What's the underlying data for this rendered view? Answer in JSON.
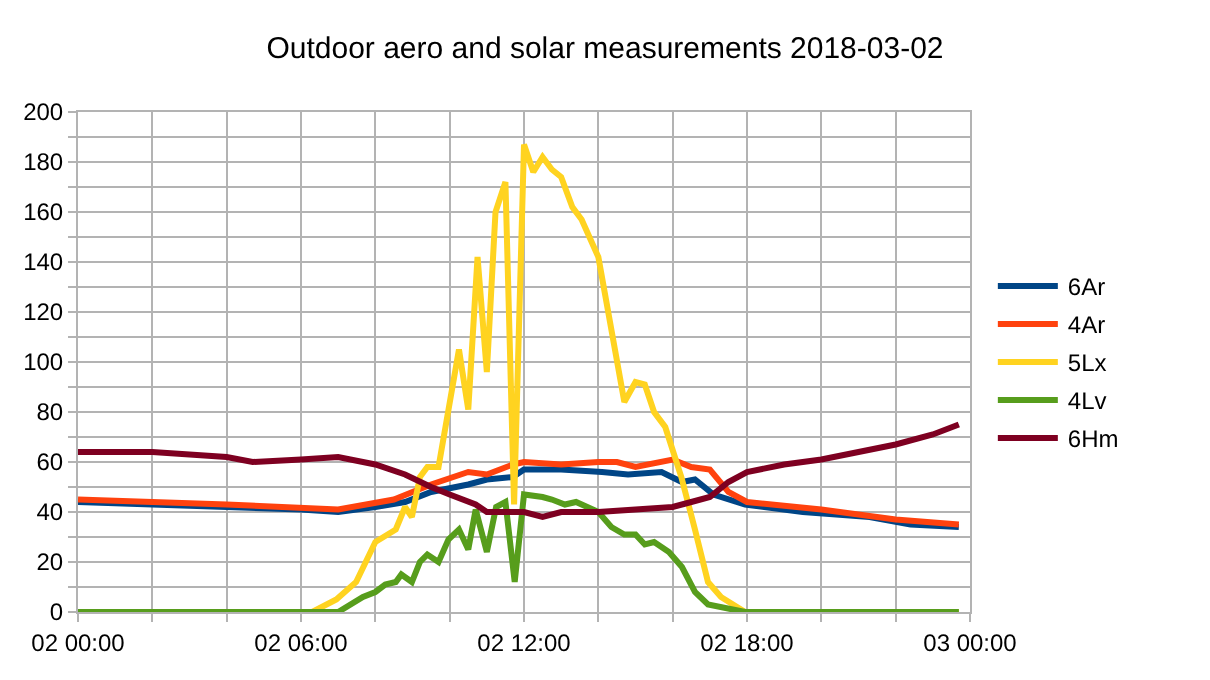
{
  "chart_data": {
    "type": "line",
    "title": "Outdoor aero and solar measurements 2018-03-02",
    "xlim": [
      "2018-03-02T00:00",
      "2018-03-03T00:00"
    ],
    "xticks": [
      {
        "value": "2018-03-02T00:00",
        "label": "02 00:00"
      },
      {
        "value": "2018-03-02T02:00",
        "label": null
      },
      {
        "value": "2018-03-02T04:00",
        "label": null
      },
      {
        "value": "2018-03-02T06:00",
        "label": "02 06:00"
      },
      {
        "value": "2018-03-02T08:00",
        "label": null
      },
      {
        "value": "2018-03-02T10:00",
        "label": null
      },
      {
        "value": "2018-03-02T12:00",
        "label": "02 12:00"
      },
      {
        "value": "2018-03-02T14:00",
        "label": null
      },
      {
        "value": "2018-03-02T16:00",
        "label": null
      },
      {
        "value": "2018-03-02T18:00",
        "label": "02 18:00"
      },
      {
        "value": "2018-03-02T20:00",
        "label": null
      },
      {
        "value": "2018-03-02T22:00",
        "label": null
      },
      {
        "value": "2018-03-03T00:00",
        "label": "03 00:00"
      }
    ],
    "ylim": [
      0,
      200
    ],
    "yticks": [
      0,
      {
        "value": 10,
        "label": null
      },
      20,
      {
        "value": 30,
        "label": null
      },
      40,
      {
        "value": 50,
        "label": null
      },
      60,
      {
        "value": 70,
        "label": null
      },
      80,
      {
        "value": 90,
        "label": null
      },
      100,
      {
        "value": 110,
        "label": null
      },
      120,
      {
        "value": 130,
        "label": null
      },
      140,
      {
        "value": 150,
        "label": null
      },
      160,
      {
        "value": 170,
        "label": null
      },
      180,
      {
        "value": 190,
        "label": null
      },
      200
    ],
    "grid": true,
    "legend": "right",
    "marker": "none",
    "line_style": "solid",
    "series": [
      {
        "name": "6Ar",
        "color": "#004586",
        "x": [
          "2018-03-02T00:00",
          "2018-03-02T02:00",
          "2018-03-02T04:00",
          "2018-03-02T06:00",
          "2018-03-02T07:00",
          "2018-03-02T08:00",
          "2018-03-02T08:48",
          "2018-03-02T09:30",
          "2018-03-02T10:30",
          "2018-03-02T11:00",
          "2018-03-02T11:42",
          "2018-03-02T12:00",
          "2018-03-02T13:00",
          "2018-03-02T14:06",
          "2018-03-02T14:48",
          "2018-03-02T15:42",
          "2018-03-02T16:15",
          "2018-03-02T16:36",
          "2018-03-02T17:06",
          "2018-03-02T17:57",
          "2018-03-02T19:30",
          "2018-03-02T21:18",
          "2018-03-02T22:24",
          "2018-03-02T23:42"
        ],
        "values": [
          44,
          43,
          42,
          41,
          40,
          42,
          44,
          48,
          51,
          53,
          54,
          57,
          57,
          56,
          55,
          56,
          52,
          53,
          47,
          43,
          40,
          38,
          35,
          34
        ]
      },
      {
        "name": "4Ar",
        "color": "#ff420e",
        "x": [
          "2018-03-02T00:00",
          "2018-03-02T04:00",
          "2018-03-02T07:00",
          "2018-03-02T08:30",
          "2018-03-02T09:00",
          "2018-03-02T09:30",
          "2018-03-02T10:30",
          "2018-03-02T11:00",
          "2018-03-02T11:42",
          "2018-03-02T12:00",
          "2018-03-02T13:00",
          "2018-03-02T14:00",
          "2018-03-02T14:30",
          "2018-03-02T15:00",
          "2018-03-02T16:00",
          "2018-03-02T16:30",
          "2018-03-02T17:00",
          "2018-03-02T17:30",
          "2018-03-02T18:00",
          "2018-03-02T20:00",
          "2018-03-02T22:00",
          "2018-03-02T23:42"
        ],
        "values": [
          45,
          43,
          41,
          45,
          48,
          51,
          56,
          55,
          59,
          60,
          59,
          60,
          60,
          58,
          61,
          58,
          57,
          48,
          44,
          41,
          37,
          35
        ]
      },
      {
        "name": "5Lx",
        "color": "#ffd320",
        "x": [
          "2018-03-02T00:00",
          "2018-03-02T06:18",
          "2018-03-02T06:57",
          "2018-03-02T07:29",
          "2018-03-02T08:00",
          "2018-03-02T08:33",
          "2018-03-02T08:48",
          "2018-03-02T08:59",
          "2018-03-02T09:12",
          "2018-03-02T09:24",
          "2018-03-02T09:42",
          "2018-03-02T10:15",
          "2018-03-02T10:30",
          "2018-03-02T10:45",
          "2018-03-02T11:00",
          "2018-03-02T11:14",
          "2018-03-02T11:30",
          "2018-03-02T11:44",
          "2018-03-02T12:00",
          "2018-03-02T12:15",
          "2018-03-02T12:30",
          "2018-03-02T12:45",
          "2018-03-02T13:00",
          "2018-03-02T13:18",
          "2018-03-02T13:33",
          "2018-03-02T14:00",
          "2018-03-02T14:42",
          "2018-03-02T15:00",
          "2018-03-02T15:15",
          "2018-03-02T15:30",
          "2018-03-02T15:48",
          "2018-03-02T16:14",
          "2018-03-02T16:36",
          "2018-03-02T16:57",
          "2018-03-02T17:18",
          "2018-03-02T17:57",
          "2018-03-02T23:42"
        ],
        "values": [
          0,
          0,
          5,
          12,
          28,
          33,
          42,
          38,
          54,
          58,
          58,
          105,
          81,
          142,
          96,
          160,
          172,
          43,
          187,
          176,
          182,
          177,
          174,
          162,
          157,
          142,
          84,
          92,
          91,
          80,
          74,
          54,
          33,
          12,
          6,
          0,
          0
        ]
      },
      {
        "name": "4Lv",
        "color": "#579d1c",
        "x": [
          "2018-03-02T00:00",
          "2018-03-02T07:00",
          "2018-03-02T07:40",
          "2018-03-02T08:00",
          "2018-03-02T08:16",
          "2018-03-02T08:33",
          "2018-03-02T08:42",
          "2018-03-02T08:59",
          "2018-03-02T09:12",
          "2018-03-02T09:24",
          "2018-03-02T09:42",
          "2018-03-02T09:58",
          "2018-03-02T10:15",
          "2018-03-02T10:30",
          "2018-03-02T10:42",
          "2018-03-02T11:00",
          "2018-03-02T11:15",
          "2018-03-02T11:30",
          "2018-03-02T11:45",
          "2018-03-02T12:00",
          "2018-03-02T12:30",
          "2018-03-02T12:45",
          "2018-03-02T13:06",
          "2018-03-02T13:24",
          "2018-03-02T14:00",
          "2018-03-02T14:21",
          "2018-03-02T14:42",
          "2018-03-02T15:00",
          "2018-03-02T15:15",
          "2018-03-02T15:30",
          "2018-03-02T15:54",
          "2018-03-02T16:15",
          "2018-03-02T16:36",
          "2018-03-02T16:57",
          "2018-03-02T17:57",
          "2018-03-02T23:42"
        ],
        "values": [
          0,
          0,
          6,
          8,
          11,
          12,
          15,
          12,
          20,
          23,
          20,
          29,
          33,
          25,
          41,
          24,
          42,
          44,
          12,
          47,
          46,
          45,
          43,
          44,
          40,
          34,
          31,
          31,
          27,
          28,
          24,
          18,
          8,
          3,
          0,
          0
        ]
      },
      {
        "name": "6Hm",
        "color": "#7e0021",
        "x": [
          "2018-03-02T00:00",
          "2018-03-02T02:00",
          "2018-03-02T03:00",
          "2018-03-02T04:00",
          "2018-03-02T04:42",
          "2018-03-02T06:00",
          "2018-03-02T07:00",
          "2018-03-02T08:00",
          "2018-03-02T08:48",
          "2018-03-02T09:30",
          "2018-03-02T10:00",
          "2018-03-02T10:42",
          "2018-03-02T11:00",
          "2018-03-02T12:00",
          "2018-03-02T12:30",
          "2018-03-02T13:00",
          "2018-03-02T14:00",
          "2018-03-02T15:00",
          "2018-03-02T16:00",
          "2018-03-02T16:30",
          "2018-03-02T17:00",
          "2018-03-02T17:30",
          "2018-03-02T18:00",
          "2018-03-02T19:00",
          "2018-03-02T20:00",
          "2018-03-02T21:00",
          "2018-03-02T22:00",
          "2018-03-02T23:00",
          "2018-03-02T23:42"
        ],
        "values": [
          64,
          64,
          63,
          62,
          60,
          61,
          62,
          59,
          55,
          50,
          47,
          43,
          40,
          40,
          38,
          40,
          40,
          41,
          42,
          44,
          46,
          52,
          56,
          59,
          61,
          64,
          67,
          71,
          75
        ]
      }
    ]
  }
}
